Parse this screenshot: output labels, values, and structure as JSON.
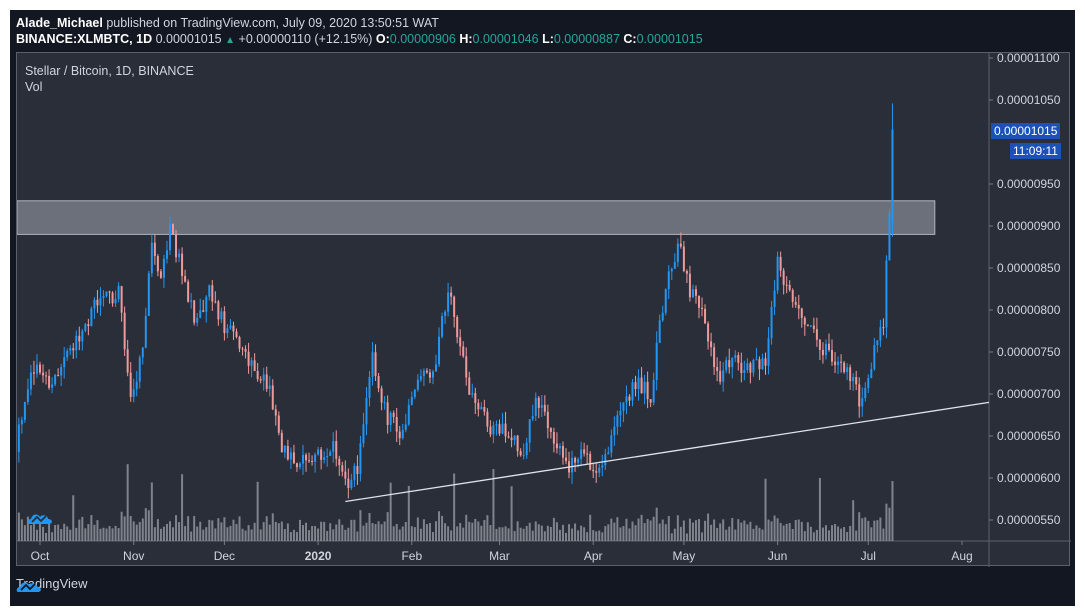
{
  "header": {
    "author": "Alade_Michael",
    "published_text": " published on TradingView.com, July 09, 2020 13:50:51 WAT",
    "symbol": "BINANCE:XLMBTC, 1D",
    "last_price": "0.00001015",
    "change_arrow": "▲",
    "change": "+0.00000110 (+12.15%)",
    "open_label": "O:",
    "open": "0.00000906",
    "high_label": "H:",
    "high": "0.00001046",
    "low_label": "L:",
    "low": "0.00000887",
    "close_label": "C:",
    "close": "0.00001015"
  },
  "legend": {
    "title": "Stellar / Bitcoin, 1D, BINANCE",
    "indicator": "Vol"
  },
  "price_tag": {
    "value": "0.00001015",
    "countdown": "11:09:11",
    "color": "#1c52b8"
  },
  "footer": {
    "brand": "TradingView",
    "logo_color": "#2196f3"
  },
  "colors": {
    "up": "#2196f3",
    "down": "#ef9a9a",
    "volume": "#9598a1",
    "zone_fill": "#787b86",
    "zone_border": "#b2b5be",
    "trendline": "#e0e3eb"
  },
  "chart_data": {
    "type": "candlestick",
    "title": "Stellar / Bitcoin, 1D, BINANCE",
    "symbol": "XLMBTC",
    "interval": "1D",
    "xlabel": "",
    "ylabel": "",
    "ylim": [
      5.25e-06,
      1.105e-05
    ],
    "y_ticks": [
      "0.00001100",
      "0.00001050",
      "0.00000950",
      "0.00000900",
      "0.00000850",
      "0.00000800",
      "0.00000750",
      "0.00000700",
      "0.00000650",
      "0.00000600",
      "0.00000550"
    ],
    "x_ticks": [
      "Oct",
      "Nov",
      "Dec",
      "2020",
      "Feb",
      "Mar",
      "Apr",
      "May",
      "Jun",
      "Jul",
      "Aug"
    ],
    "grid": false,
    "legend_position": "top-left",
    "last_bar": {
      "date": "2020-07-09",
      "open": 9.06e-06,
      "high": 1.046e-05,
      "low": 8.87e-06,
      "close": 1.015e-05,
      "change_pct": 12.15
    },
    "resistance_zone": {
      "from": 8.9e-06,
      "to": 9.3e-06,
      "x_start": "2019-09-23",
      "x_end": "2020-07-23"
    },
    "trendline": {
      "start": {
        "date": "2020-01-10",
        "price": 5.72e-06
      },
      "end": {
        "date": "2020-08-17",
        "price": 6.9e-06
      }
    },
    "price_path_anchors": [
      {
        "date": "2019-09-23",
        "close": 6.4e-06
      },
      {
        "date": "2019-09-28",
        "close": 7.3e-06
      },
      {
        "date": "2019-10-05",
        "close": 7.15e-06
      },
      {
        "date": "2019-10-12",
        "close": 7.6e-06
      },
      {
        "date": "2019-10-20",
        "close": 8.1e-06
      },
      {
        "date": "2019-10-27",
        "close": 8.2e-06
      },
      {
        "date": "2019-10-31",
        "close": 6.9e-06
      },
      {
        "date": "2019-11-04",
        "close": 7.5e-06
      },
      {
        "date": "2019-11-07",
        "close": 8.8e-06
      },
      {
        "date": "2019-11-10",
        "close": 8.3e-06
      },
      {
        "date": "2019-11-13",
        "close": 9e-06
      },
      {
        "date": "2019-11-16",
        "close": 8.6e-06
      },
      {
        "date": "2019-11-22",
        "close": 7.8e-06
      },
      {
        "date": "2019-11-26",
        "close": 8.2e-06
      },
      {
        "date": "2019-12-01",
        "close": 7.8e-06
      },
      {
        "date": "2019-12-08",
        "close": 7.5e-06
      },
      {
        "date": "2019-12-16",
        "close": 7e-06
      },
      {
        "date": "2019-12-20",
        "close": 6.4e-06
      },
      {
        "date": "2019-12-25",
        "close": 6.15e-06
      },
      {
        "date": "2020-01-02",
        "close": 6.25e-06
      },
      {
        "date": "2020-01-06",
        "close": 6.4e-06
      },
      {
        "date": "2020-01-10",
        "close": 5.9e-06
      },
      {
        "date": "2020-01-14",
        "close": 6.1e-06
      },
      {
        "date": "2020-01-19",
        "close": 7.4e-06
      },
      {
        "date": "2020-01-23",
        "close": 6.8e-06
      },
      {
        "date": "2020-01-28",
        "close": 6.5e-06
      },
      {
        "date": "2020-02-03",
        "close": 7.2e-06
      },
      {
        "date": "2020-02-08",
        "close": 7.2e-06
      },
      {
        "date": "2020-02-13",
        "close": 8.3e-06
      },
      {
        "date": "2020-02-16",
        "close": 7.6e-06
      },
      {
        "date": "2020-02-20",
        "close": 7.1e-06
      },
      {
        "date": "2020-02-27",
        "close": 6.6e-06
      },
      {
        "date": "2020-03-05",
        "close": 6.5e-06
      },
      {
        "date": "2020-03-09",
        "close": 6.2e-06
      },
      {
        "date": "2020-03-13",
        "close": 7e-06
      },
      {
        "date": "2020-03-18",
        "close": 6.6e-06
      },
      {
        "date": "2020-03-24",
        "close": 6.1e-06
      },
      {
        "date": "2020-03-29",
        "close": 6.3e-06
      },
      {
        "date": "2020-04-02",
        "close": 6.1e-06
      },
      {
        "date": "2020-04-06",
        "close": 6.4e-06
      },
      {
        "date": "2020-04-12",
        "close": 7e-06
      },
      {
        "date": "2020-04-16",
        "close": 7.1e-06
      },
      {
        "date": "2020-04-20",
        "close": 7e-06
      },
      {
        "date": "2020-04-25",
        "close": 8.3e-06
      },
      {
        "date": "2020-04-29",
        "close": 8.8e-06
      },
      {
        "date": "2020-05-03",
        "close": 8.2e-06
      },
      {
        "date": "2020-05-07",
        "close": 8e-06
      },
      {
        "date": "2020-05-12",
        "close": 7.2e-06
      },
      {
        "date": "2020-05-17",
        "close": 7.4e-06
      },
      {
        "date": "2020-05-23",
        "close": 7.3e-06
      },
      {
        "date": "2020-05-28",
        "close": 7.4e-06
      },
      {
        "date": "2020-06-01",
        "close": 8.6e-06
      },
      {
        "date": "2020-06-05",
        "close": 8.2e-06
      },
      {
        "date": "2020-06-10",
        "close": 7.9e-06
      },
      {
        "date": "2020-06-15",
        "close": 7.6e-06
      },
      {
        "date": "2020-06-20",
        "close": 7.4e-06
      },
      {
        "date": "2020-06-26",
        "close": 7.2e-06
      },
      {
        "date": "2020-06-28",
        "close": 6.9e-06
      },
      {
        "date": "2020-07-02",
        "close": 7.4e-06
      },
      {
        "date": "2020-07-06",
        "close": 7.9e-06
      },
      {
        "date": "2020-07-08",
        "close": 9.06e-06
      },
      {
        "date": "2020-07-09",
        "close": 1.015e-05
      }
    ]
  }
}
